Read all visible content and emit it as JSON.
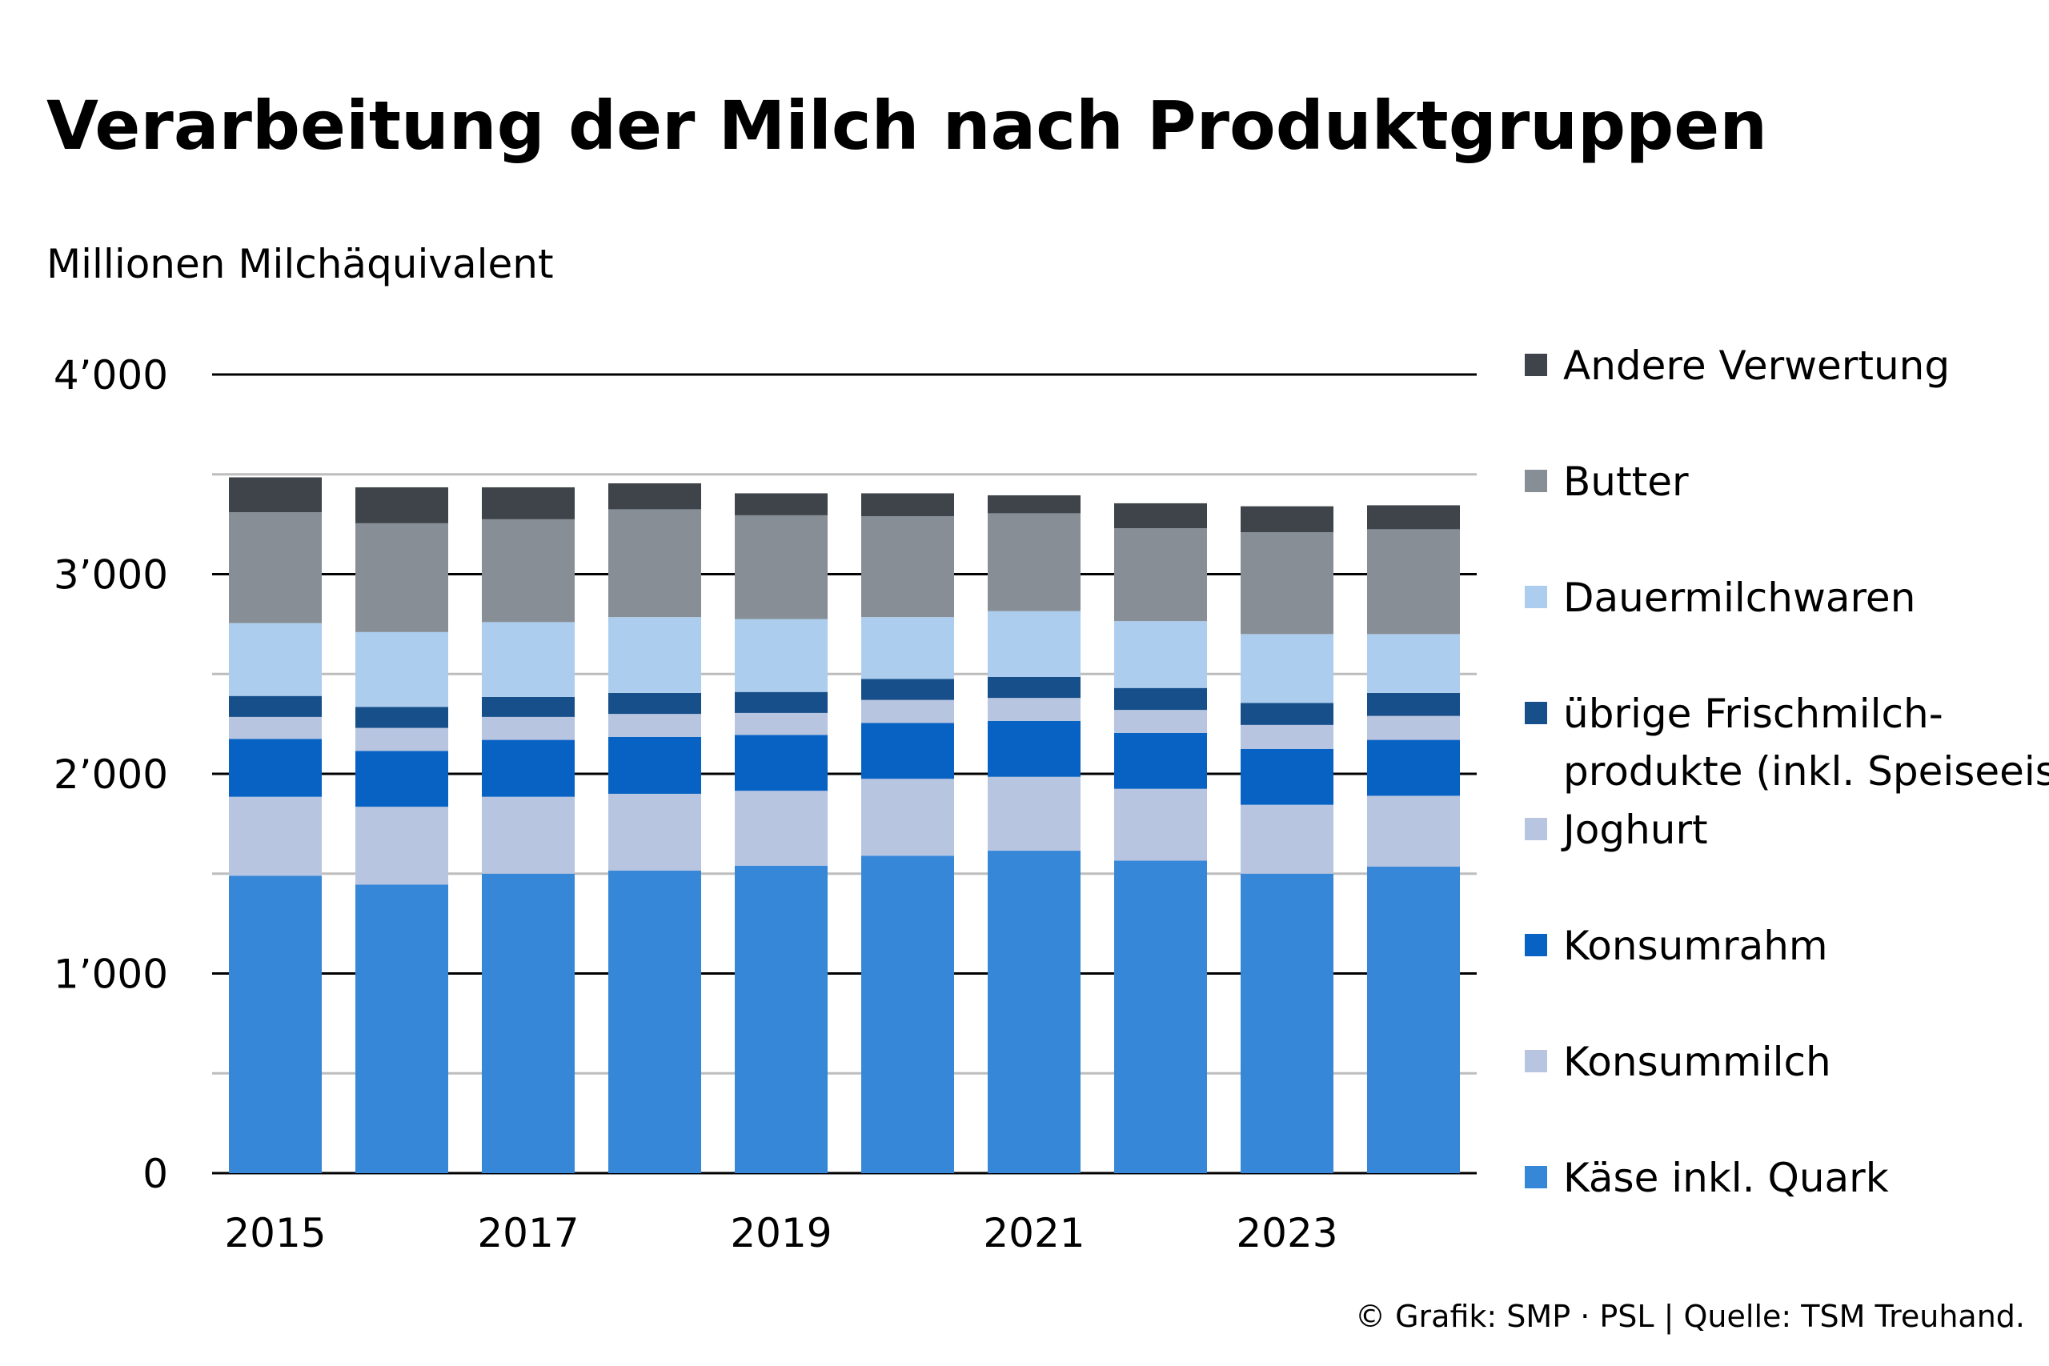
{
  "chart_data": {
    "type": "bar",
    "stacked": true,
    "title": "Verarbeitung der Milch nach Produktgruppen",
    "subtitle": "Millionen Milchäquivalent",
    "source": "© Grafik: SMP · PSL | Quelle: TSM Treuhand.",
    "categories": [
      "2015",
      "2016",
      "2017",
      "2018",
      "2019",
      "2020",
      "2021",
      "2022",
      "2023",
      "2024"
    ],
    "x_tick_labels": [
      "2015",
      "",
      "2017",
      "",
      "2019",
      "",
      "2021",
      "",
      "2023",
      ""
    ],
    "ylim": [
      0,
      4000
    ],
    "y_ticks": [
      0,
      1000,
      2000,
      3000,
      4000
    ],
    "y_tick_labels": [
      "0",
      "1’000",
      "2’000",
      "3’000",
      "4’000"
    ],
    "minor_gridlines": [
      500,
      1500,
      2500,
      3500
    ],
    "grid": true,
    "legend_position": "right",
    "series": [
      {
        "name": "Käse inkl. Quark",
        "color": "#3787D8",
        "values": [
          1490,
          1445,
          1500,
          1515,
          1540,
          1590,
          1615,
          1565,
          1500,
          1535
        ]
      },
      {
        "name": "Konsummilch",
        "color": "#B8C5E0",
        "values": [
          395,
          390,
          385,
          385,
          375,
          385,
          370,
          360,
          345,
          355
        ]
      },
      {
        "name": "Konsumrahm",
        "color": "#0862C4",
        "values": [
          290,
          280,
          285,
          285,
          280,
          280,
          280,
          280,
          280,
          280
        ]
      },
      {
        "name": "Joghurt",
        "color": "#B8C5E0",
        "values": [
          110,
          115,
          115,
          115,
          110,
          115,
          115,
          115,
          120,
          120
        ]
      },
      {
        "name": "übrige Frischmilch-produkte (inkl. Speiseeis)",
        "color": "#174F8A",
        "values": [
          105,
          105,
          100,
          105,
          105,
          105,
          105,
          110,
          110,
          115
        ]
      },
      {
        "name": "Dauermilchwaren",
        "color": "#ADCDEE",
        "values": [
          365,
          375,
          375,
          380,
          365,
          310,
          330,
          335,
          345,
          295
        ]
      },
      {
        "name": "Butter",
        "color": "#878E96",
        "values": [
          555,
          545,
          515,
          540,
          520,
          505,
          490,
          465,
          510,
          525
        ]
      },
      {
        "name": "Andere Verwertung",
        "color": "#3E4449",
        "values": [
          175,
          180,
          160,
          130,
          110,
          115,
          90,
          125,
          130,
          120
        ]
      }
    ]
  },
  "legend": [
    {
      "lines": [
        "Andere Verwertung"
      ],
      "color": "#3E4449"
    },
    {
      "lines": [
        "Butter"
      ],
      "color": "#878E96"
    },
    {
      "lines": [
        "Dauermilchwaren"
      ],
      "color": "#ADCDEE"
    },
    {
      "lines": [
        "übrige Frischmilch-",
        "produkte (inkl. Speiseeis)"
      ],
      "color": "#174F8A"
    },
    {
      "lines": [
        "Joghurt"
      ],
      "color": "#B8C5E0"
    },
    {
      "lines": [
        "Konsumrahm"
      ],
      "color": "#0862C4"
    },
    {
      "lines": [
        "Konsummilch"
      ],
      "color": "#B8C5E0"
    },
    {
      "lines": [
        "Käse inkl. Quark"
      ],
      "color": "#3787D8"
    }
  ],
  "colors": {
    "axis": "#000000",
    "major_grid": "#000000",
    "minor_grid": "#BDBDBD",
    "background": "#FFFFFF"
  }
}
